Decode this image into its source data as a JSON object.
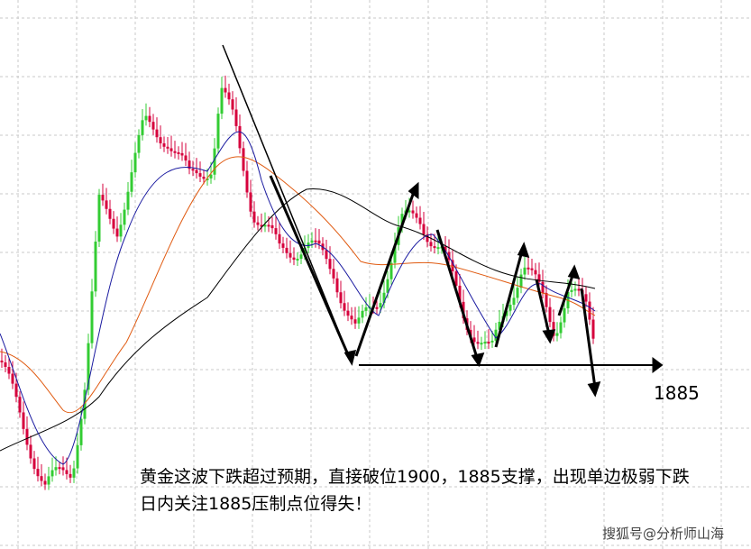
{
  "level_label": "1885",
  "annotation": [
    "黄金这波下跌超过预期，直接破位1900，1885支撑，出现单边极弱下跌",
    "日内关注1885压制点位得失！"
  ],
  "watermark": "搜狐号@分析师山海"
}
